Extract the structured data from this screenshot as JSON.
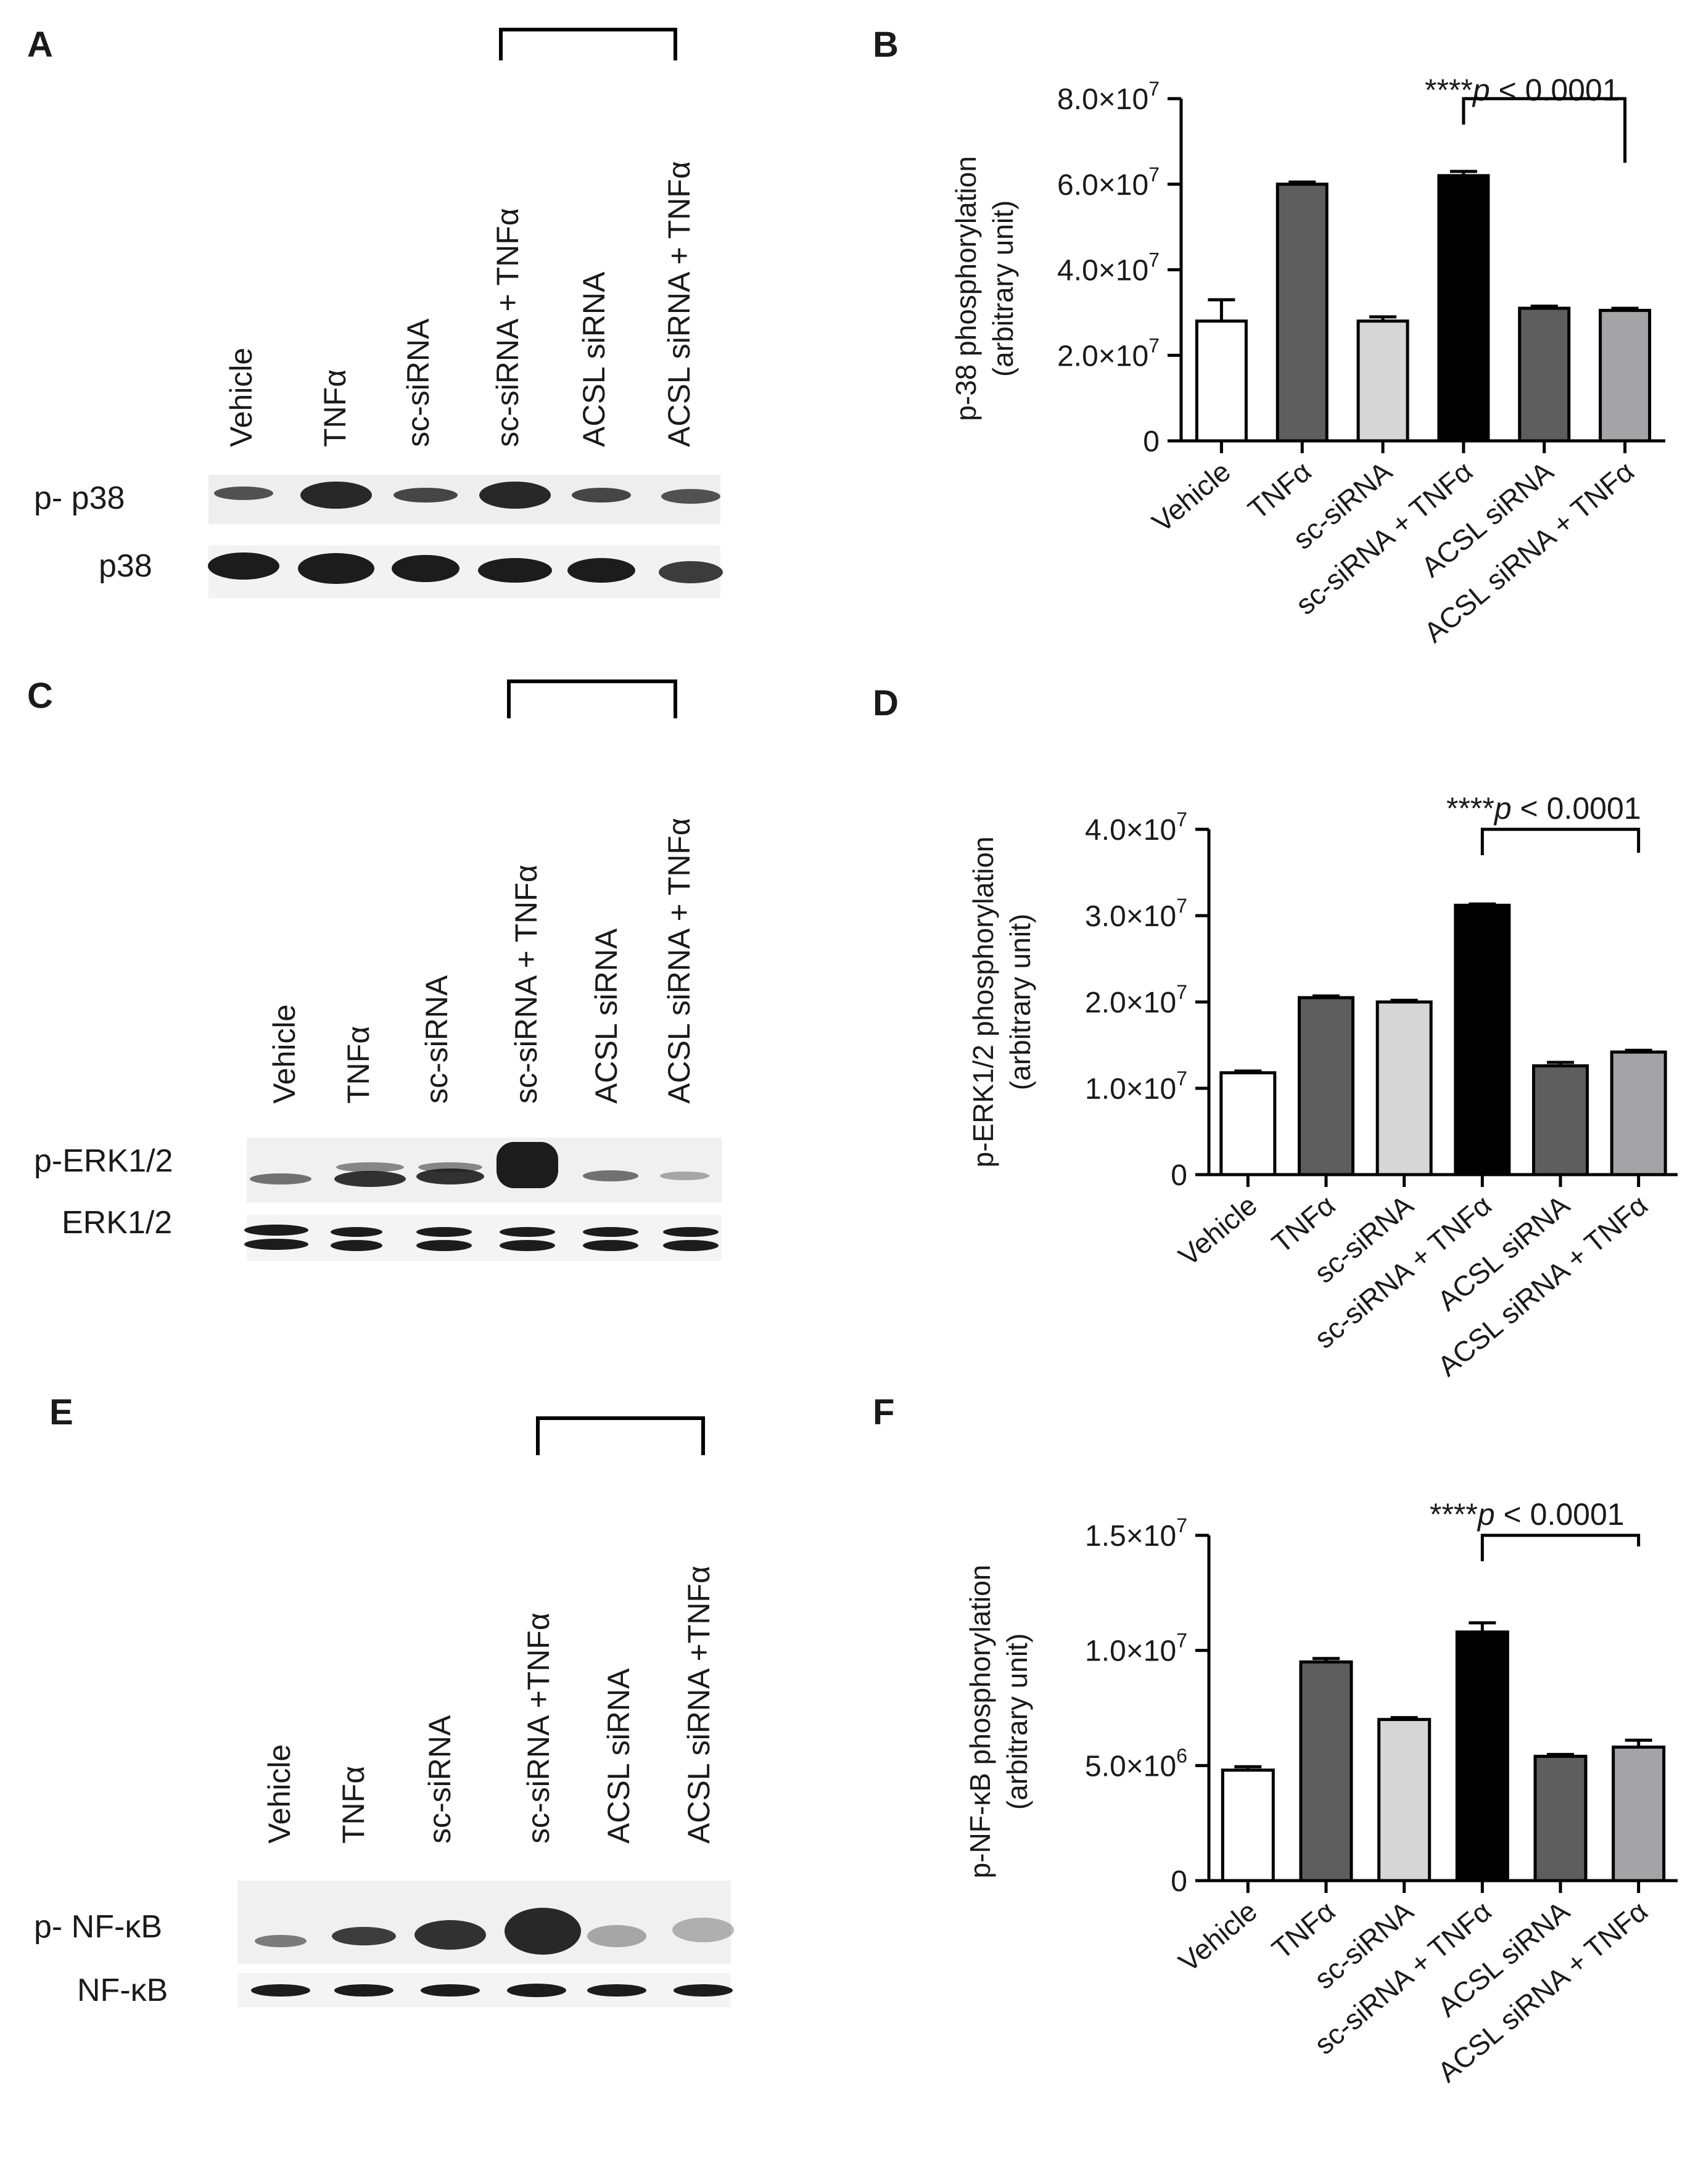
{
  "panels": [
    {
      "label": "A",
      "lanes": [
        "Vehicle",
        "TNFα",
        "sc-siRNA",
        "sc-siRNA + TNFα",
        "ACSL siRNA",
        "ACSL siRNA + TNFα"
      ],
      "rows": [
        "p- p38",
        "p38"
      ]
    },
    {
      "label": "C",
      "lanes": [
        "Vehicle",
        "TNFα",
        "sc-siRNA",
        "sc-siRNA + TNFα",
        "ACSL siRNA",
        "ACSL siRNA + TNFα"
      ],
      "rows": [
        "p-ERK1/2",
        "ERK1/2"
      ]
    },
    {
      "label": "E",
      "lanes": [
        "Vehicle",
        "TNFα",
        "sc-siRNA",
        "sc-siRNA +TNFα",
        "ACSL siRNA",
        "ACSL siRNA +TNFα"
      ],
      "rows": [
        "p- NF-κB",
        "NF-κB"
      ]
    }
  ],
  "chart_data": [
    {
      "label": "B",
      "type": "bar",
      "ylabel": "p-38 phosphorylation",
      "ylabel2": "(arbitrary unit)",
      "categories": [
        "Vehicle",
        "TNFα",
        "sc-siRNA",
        "sc-siRNA + TNFα",
        "ACSL siRNA",
        "ACSL siRNA + TNFα"
      ],
      "values": [
        28000000,
        60000000,
        28000000,
        62000000,
        31000000,
        30500000
      ],
      "errors": [
        5000000,
        500000,
        1000000,
        1000000,
        500000,
        500000
      ],
      "ylim": [
        0,
        80000000
      ],
      "ticks": [
        {
          "value": 0,
          "mant": "0",
          "exp": ""
        },
        {
          "value": 20000000,
          "mant": "2.0",
          "exp": "7"
        },
        {
          "value": 40000000,
          "mant": "4.0",
          "exp": "7"
        },
        {
          "value": 60000000,
          "mant": "6.0",
          "exp": "7"
        },
        {
          "value": 80000000,
          "mant": "8.0",
          "exp": "7"
        }
      ],
      "significance": "****",
      "pvalue": "p",
      "pvalue_rest": " < 0.0001",
      "bracket": [
        3,
        5
      ]
    },
    {
      "label": "D",
      "type": "bar",
      "ylabel": "p-ERK1/2 phosphorylation",
      "ylabel2": "(arbitrary unit)",
      "categories": [
        "Vehicle",
        "TNFα",
        "sc-siRNA",
        "sc-siRNA + TNFα",
        "ACSL siRNA",
        "ACSL siRNA + TNFα"
      ],
      "values": [
        11800000,
        20500000,
        20000000,
        31200000,
        12600000,
        14200000
      ],
      "errors": [
        200000,
        200000,
        200000,
        150000,
        400000,
        200000
      ],
      "ylim": [
        0,
        40000000
      ],
      "ticks": [
        {
          "value": 0,
          "mant": "0",
          "exp": ""
        },
        {
          "value": 10000000,
          "mant": "1.0",
          "exp": "7"
        },
        {
          "value": 20000000,
          "mant": "2.0",
          "exp": "7"
        },
        {
          "value": 30000000,
          "mant": "3.0",
          "exp": "7"
        },
        {
          "value": 40000000,
          "mant": "4.0",
          "exp": "7"
        }
      ],
      "significance": "****",
      "pvalue": "p",
      "pvalue_rest": " < 0.0001",
      "bracket": [
        3,
        5
      ]
    },
    {
      "label": "F",
      "type": "bar",
      "ylabel": "p-NF-κB  phosphorylation",
      "ylabel2": "(arbitrary unit)",
      "categories": [
        "Vehicle",
        "TNFα",
        "sc-siRNA",
        "sc-siRNA + TNFα",
        "ACSL siRNA",
        "ACSL siRNA + TNFα"
      ],
      "values": [
        4800000,
        9500000,
        7000000,
        10800000,
        5400000,
        5800000
      ],
      "errors": [
        150000,
        150000,
        80000,
        400000,
        80000,
        300000
      ],
      "ylim": [
        0,
        15000000
      ],
      "ticks": [
        {
          "value": 0,
          "mant": "0",
          "exp": ""
        },
        {
          "value": 5000000,
          "mant": "5.0",
          "exp": "6"
        },
        {
          "value": 10000000,
          "mant": "1.0",
          "exp": "7"
        },
        {
          "value": 15000000,
          "mant": "1.5",
          "exp": "7"
        }
      ],
      "significance": "****",
      "pvalue": "p",
      "pvalue_rest": " < 0.0001",
      "bracket": [
        3,
        5
      ]
    }
  ]
}
